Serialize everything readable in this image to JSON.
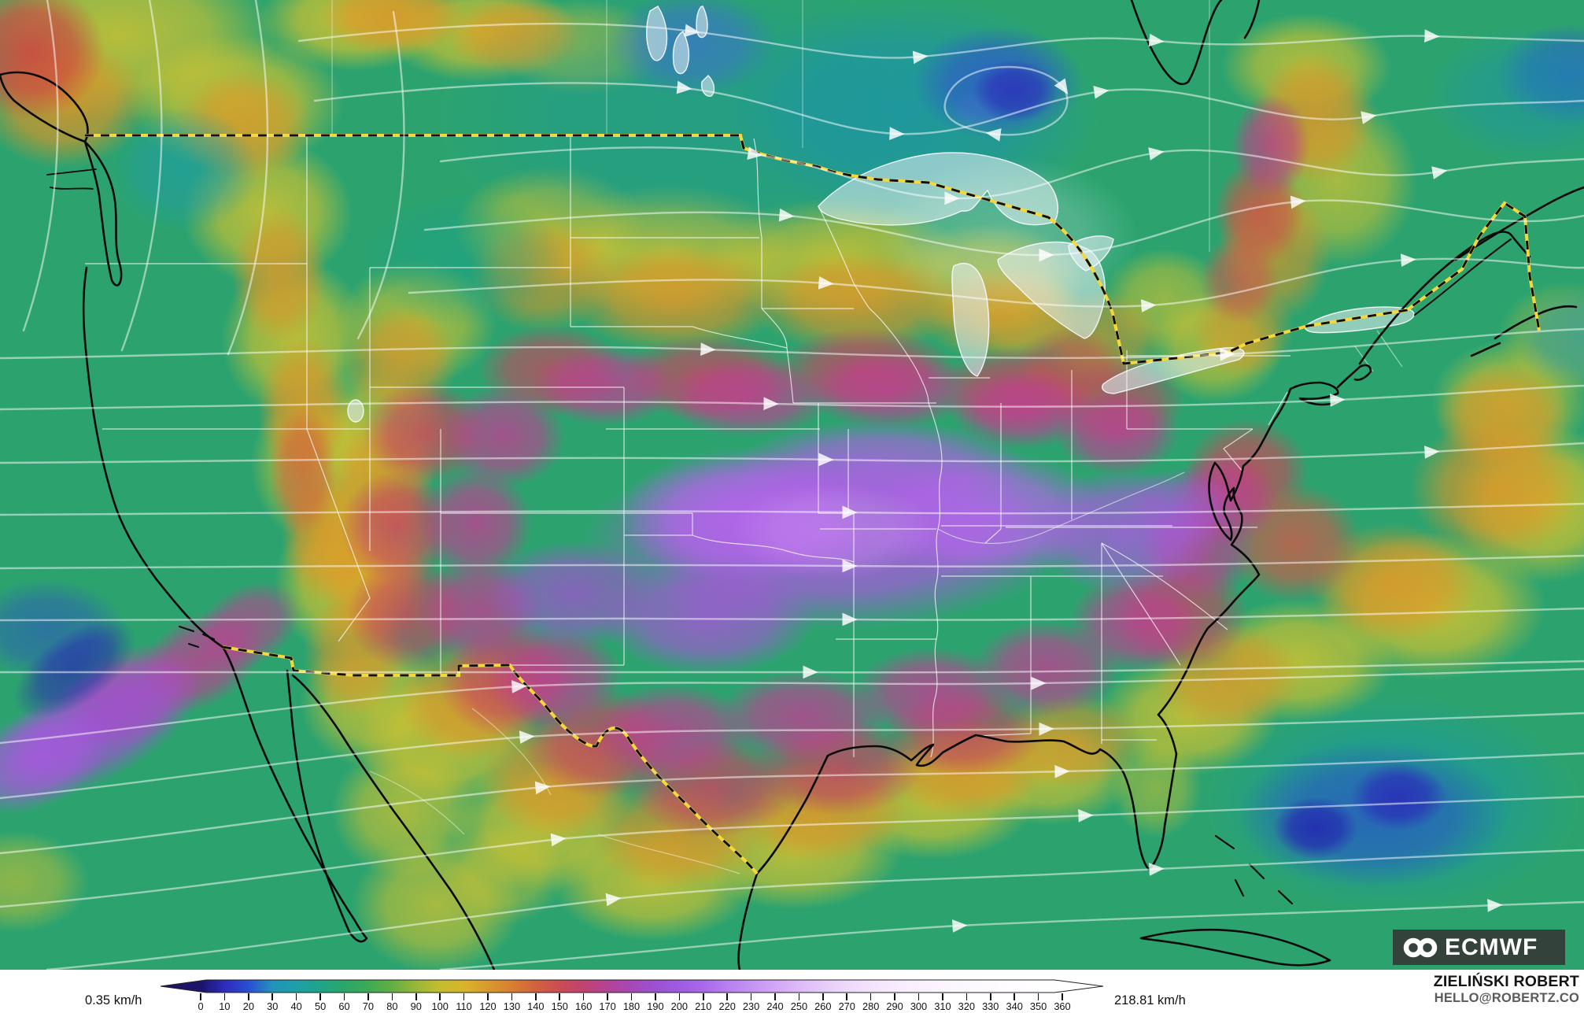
{
  "map": {
    "description": "ECMWF wind speed and streamlines over the United States",
    "base_color": "#2ca36f",
    "logo": {
      "text": "ECMWF"
    },
    "attribution": {
      "name": "ZIELIŃSKI ROBERT",
      "email": "HELLO@ROBERTZ.CO"
    },
    "border_colors": {
      "national_dash": "#f5d83c",
      "national_dash_dark": "#111111",
      "state": "#ffffff",
      "coast": "#0a0a0a"
    }
  },
  "legend": {
    "min_label": "0.35 km/h",
    "max_label": "218.81 km/h",
    "unit": "km/h",
    "ticks": [
      0,
      10,
      20,
      30,
      40,
      50,
      60,
      70,
      80,
      90,
      100,
      110,
      120,
      130,
      140,
      150,
      160,
      170,
      180,
      190,
      200,
      210,
      220,
      230,
      240,
      250,
      260,
      270,
      280,
      290,
      300,
      310,
      320,
      330,
      340,
      350,
      360
    ],
    "gradient_stops": [
      {
        "v": 0,
        "c": "#1c1468"
      },
      {
        "v": 10,
        "c": "#2c2cba"
      },
      {
        "v": 20,
        "c": "#2a4fd4"
      },
      {
        "v": 30,
        "c": "#2492bc"
      },
      {
        "v": 40,
        "c": "#1da0a8"
      },
      {
        "v": 50,
        "c": "#20a488"
      },
      {
        "v": 60,
        "c": "#2aa768"
      },
      {
        "v": 70,
        "c": "#3daa55"
      },
      {
        "v": 80,
        "c": "#63ae45"
      },
      {
        "v": 90,
        "c": "#97b739"
      },
      {
        "v": 100,
        "c": "#c5bd2e"
      },
      {
        "v": 110,
        "c": "#d9b42a"
      },
      {
        "v": 120,
        "c": "#d99a2d"
      },
      {
        "v": 130,
        "c": "#d87f32"
      },
      {
        "v": 140,
        "c": "#d2623e"
      },
      {
        "v": 150,
        "c": "#cb4d52"
      },
      {
        "v": 160,
        "c": "#c04371"
      },
      {
        "v": 170,
        "c": "#b34394"
      },
      {
        "v": 180,
        "c": "#a748b8"
      },
      {
        "v": 190,
        "c": "#9c51d2"
      },
      {
        "v": 200,
        "c": "#9e5ce2"
      },
      {
        "v": 210,
        "c": "#a96ae9"
      },
      {
        "v": 220,
        "c": "#b77ff0"
      },
      {
        "v": 230,
        "c": "#c593f3"
      },
      {
        "v": 240,
        "c": "#d2a7f6"
      },
      {
        "v": 250,
        "c": "#ddbaf8"
      },
      {
        "v": 260,
        "c": "#e7cbfa"
      },
      {
        "v": 270,
        "c": "#eed9fb"
      },
      {
        "v": 280,
        "c": "#f4e3fc"
      },
      {
        "v": 290,
        "c": "#f7ebfd"
      },
      {
        "v": 300,
        "c": "#faf1fd"
      },
      {
        "v": 310,
        "c": "#fbf5fe"
      },
      {
        "v": 320,
        "c": "#fcf8fe"
      },
      {
        "v": 330,
        "c": "#fdfafe"
      },
      {
        "v": 340,
        "c": "#fefcff"
      },
      {
        "v": 350,
        "c": "#fefdff"
      },
      {
        "v": 360,
        "c": "#ffffff"
      }
    ]
  }
}
